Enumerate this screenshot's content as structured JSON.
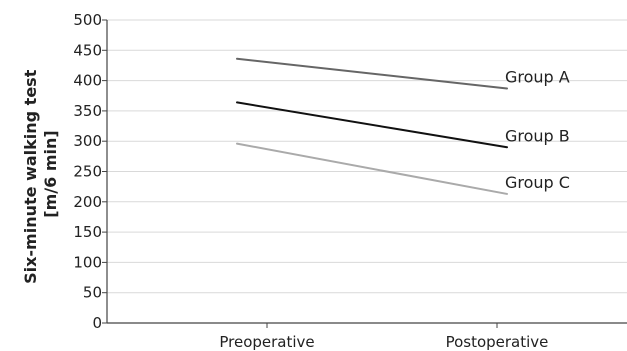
{
  "chart_data": {
    "type": "line",
    "categories": [
      "Preoperative",
      "Postoperative"
    ],
    "series": [
      {
        "name": "Group A",
        "values": [
          436,
          387
        ],
        "color": "#666666"
      },
      {
        "name": "Group B",
        "values": [
          364,
          290
        ],
        "color": "#111111"
      },
      {
        "name": "Group C",
        "values": [
          296,
          213
        ],
        "color": "#aaaaaa"
      }
    ],
    "ylabel_lines": [
      "Six-minute walking test",
      "[m/6 min]"
    ],
    "xlabel": "",
    "title": "",
    "ylim": [
      0,
      500
    ],
    "yticks": [
      0,
      50,
      100,
      150,
      200,
      250,
      300,
      350,
      400,
      450,
      500
    ],
    "grid": "horizontal",
    "legend": "direct labels at line ends"
  }
}
